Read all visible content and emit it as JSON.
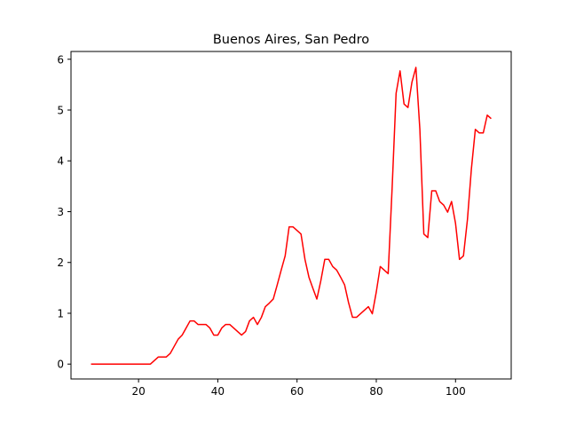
{
  "chart_data": {
    "type": "line",
    "title": "Buenos Aires, San Pedro",
    "xlabel": "",
    "ylabel": "",
    "xlim": [
      2.95,
      114.05
    ],
    "ylim": [
      -0.293,
      6.153
    ],
    "xticks": [
      20,
      40,
      60,
      80,
      100
    ],
    "yticks": [
      0,
      1,
      2,
      3,
      4,
      5,
      6
    ],
    "grid": false,
    "legend": "none",
    "series": [
      {
        "color": "#ff0000",
        "x": [
          8,
          9,
          10,
          11,
          12,
          13,
          14,
          15,
          16,
          17,
          18,
          19,
          20,
          21,
          22,
          23,
          24,
          25,
          26,
          27,
          28,
          29,
          30,
          31,
          32,
          33,
          34,
          35,
          36,
          37,
          38,
          39,
          40,
          41,
          42,
          43,
          44,
          45,
          46,
          47,
          48,
          49,
          50,
          51,
          52,
          53,
          54,
          55,
          56,
          57,
          58,
          59,
          60,
          61,
          62,
          63,
          64,
          65,
          66,
          67,
          68,
          69,
          70,
          71,
          72,
          73,
          74,
          75,
          76,
          77,
          78,
          79,
          80,
          81,
          82,
          83,
          84,
          85,
          86,
          87,
          88,
          89,
          90,
          91,
          92,
          93,
          94,
          95,
          96,
          97,
          98,
          99,
          100,
          101,
          102,
          103,
          104,
          105,
          106,
          107,
          108,
          109
        ],
        "values": [
          0,
          0,
          0,
          0,
          0,
          0,
          0,
          0,
          0,
          0,
          0,
          0,
          0,
          0,
          0,
          0,
          0.07,
          0.14,
          0.14,
          0.14,
          0.21,
          0.35,
          0.49,
          0.57,
          0.71,
          0.85,
          0.85,
          0.78,
          0.78,
          0.78,
          0.71,
          0.57,
          0.57,
          0.71,
          0.78,
          0.78,
          0.71,
          0.64,
          0.57,
          0.64,
          0.85,
          0.92,
          0.78,
          0.92,
          1.13,
          1.2,
          1.28,
          1.56,
          1.85,
          2.13,
          2.7,
          2.7,
          2.63,
          2.56,
          2.06,
          1.71,
          1.49,
          1.28,
          1.64,
          2.06,
          2.06,
          1.92,
          1.85,
          1.71,
          1.56,
          1.21,
          0.92,
          0.92,
          0.99,
          1.06,
          1.13,
          0.99,
          1.42,
          1.92,
          1.85,
          1.78,
          3.47,
          5.33,
          5.77,
          5.12,
          5.05,
          5.55,
          5.84,
          4.62,
          2.56,
          2.49,
          3.41,
          3.41,
          3.2,
          3.13,
          2.99,
          3.2,
          2.77,
          2.06,
          2.13,
          2.84,
          3.84,
          4.62,
          4.55,
          4.55,
          4.9,
          4.83
        ]
      }
    ]
  }
}
